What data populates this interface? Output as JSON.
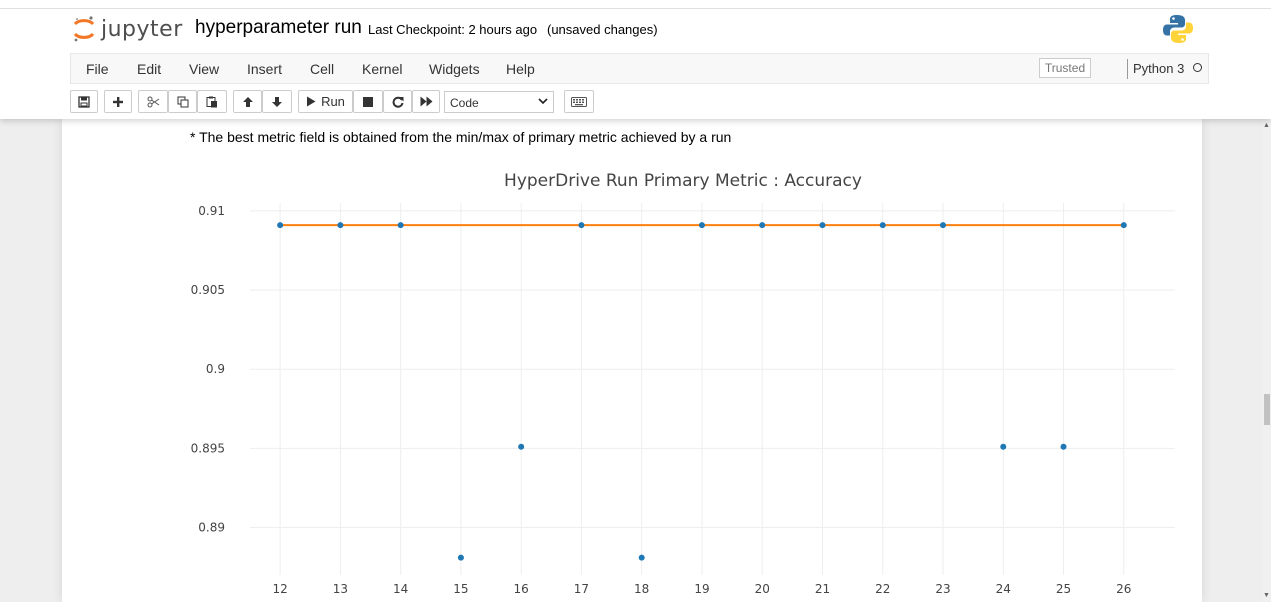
{
  "header": {
    "logo_text": "jupyter",
    "notebook_title": "hyperparameter run",
    "checkpoint": "Last Checkpoint: 2 hours ago",
    "save_status": "(unsaved changes)"
  },
  "menubar": {
    "items": [
      "File",
      "Edit",
      "View",
      "Insert",
      "Cell",
      "Kernel",
      "Widgets",
      "Help"
    ],
    "trusted": "Trusted",
    "kernel": "Python 3"
  },
  "toolbar": {
    "run_label": "Run",
    "cell_type": "Code",
    "buttons": [
      "save-icon",
      "plus-icon",
      "cut-icon",
      "copy-icon",
      "paste-icon",
      "arrow-up-icon",
      "arrow-down-icon",
      "play-icon",
      "stop-icon",
      "restart-icon",
      "fast-forward-icon",
      "keyboard-icon"
    ]
  },
  "output": {
    "note": "* The best metric field is obtained from the min/max of primary metric achieved by a run"
  },
  "chart_data": {
    "type": "scatter",
    "title": "HyperDrive Run Primary Metric : Accuracy",
    "xlabel": "",
    "ylabel": "",
    "x_ticks": [
      12,
      13,
      14,
      15,
      16,
      17,
      18,
      19,
      20,
      21,
      22,
      23,
      24,
      25,
      26
    ],
    "y_ticks": [
      "0.91",
      "0.905",
      "0.9",
      "0.895",
      "0.89"
    ],
    "ylim": [
      0.887,
      0.9105
    ],
    "xlim": [
      11.5,
      26.85
    ],
    "grid": true,
    "series": [
      {
        "type": "scatter",
        "color": "#1f77b4",
        "points": [
          {
            "x": 12,
            "y": 0.9091
          },
          {
            "x": 13,
            "y": 0.9091
          },
          {
            "x": 14,
            "y": 0.9091
          },
          {
            "x": 15,
            "y": 0.8881
          },
          {
            "x": 16,
            "y": 0.8951
          },
          {
            "x": 17,
            "y": 0.9091
          },
          {
            "x": 18,
            "y": 0.8881
          },
          {
            "x": 19,
            "y": 0.9091
          },
          {
            "x": 20,
            "y": 0.9091
          },
          {
            "x": 21,
            "y": 0.9091
          },
          {
            "x": 22,
            "y": 0.9091
          },
          {
            "x": 23,
            "y": 0.9091
          },
          {
            "x": 24,
            "y": 0.8951
          },
          {
            "x": 25,
            "y": 0.8951
          },
          {
            "x": 26,
            "y": 0.9091
          }
        ]
      },
      {
        "type": "line",
        "color": "#ff7f0e",
        "points": [
          {
            "x": 12,
            "y": 0.9091
          },
          {
            "x": 26,
            "y": 0.9091
          }
        ]
      }
    ]
  }
}
